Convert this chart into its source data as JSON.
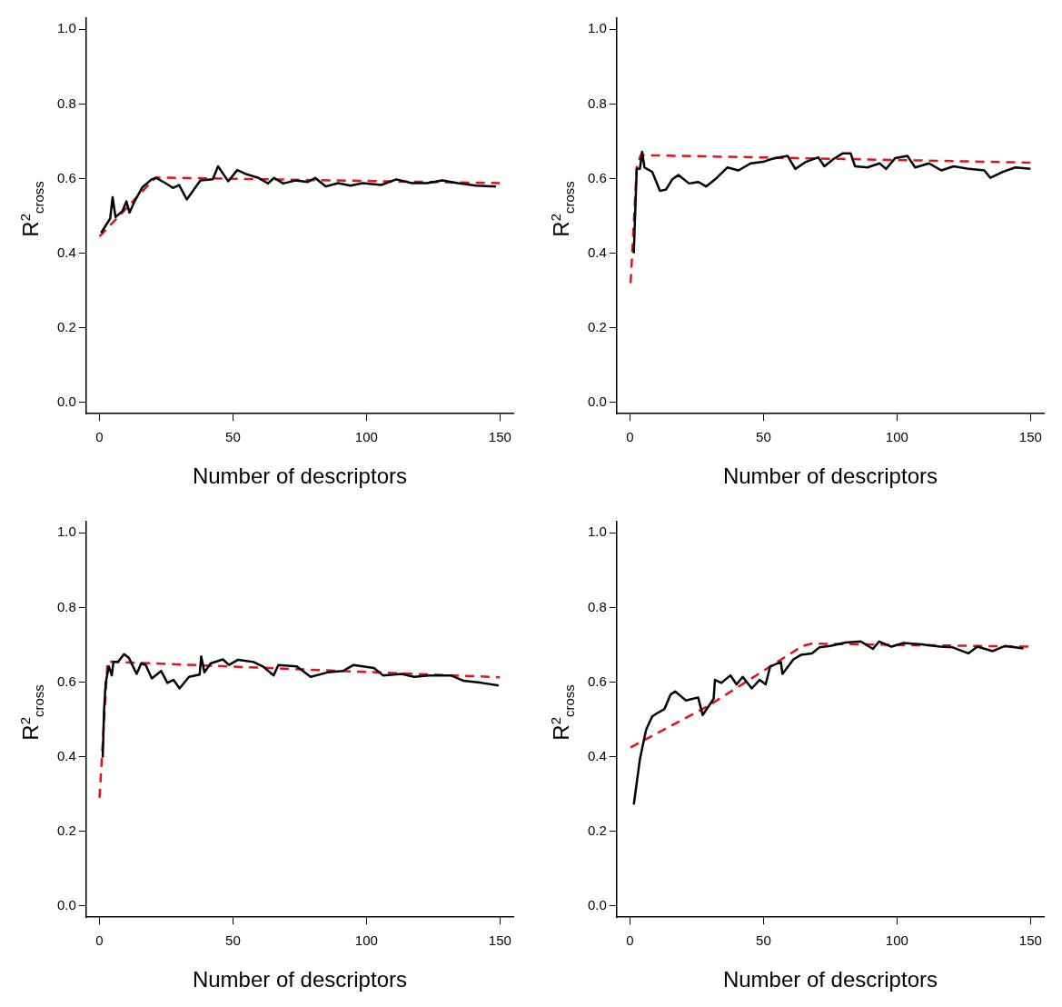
{
  "chart_data": [
    {
      "type": "line",
      "xlabel": "Number of descriptors",
      "ylabel": "R$^{2}$$_{cross}$",
      "xlim": [
        -5,
        155
      ],
      "ylim": [
        -0.03,
        1.03
      ],
      "xticks": [
        0,
        50,
        100,
        150
      ],
      "yticks": [
        {
          "value": 0,
          "label": "0.0"
        },
        {
          "value": 0.2,
          "label": "0.2"
        },
        {
          "value": 0.4,
          "label": "0.4"
        },
        {
          "value": 0.6,
          "label": "0.6"
        },
        {
          "value": 0.8,
          "label": "0.8"
        },
        {
          "value": 1,
          "label": "1.0"
        }
      ],
      "grid": false,
      "legend": false,
      "marker": "none",
      "series": [
        {
          "color": "#000000",
          "line_style": "solid",
          "x": [
            0.6,
            2.3,
            4,
            4.9,
            6,
            8.6,
            10.1,
            11.2,
            13.2,
            16.1,
            19.5,
            21.2,
            24.7,
            27.5,
            29.8,
            32.7,
            35,
            37.8,
            42.4,
            44.4,
            48.2,
            51.6,
            55,
            59.6,
            63.1,
            65.4,
            68.8,
            73.4,
            78,
            80.8,
            84.8,
            89.4,
            94,
            98.6,
            105.5,
            111.2,
            117,
            122.7,
            128.4,
            134.2,
            141,
            148.5
          ],
          "values": [
            0.455,
            0.474,
            0.493,
            0.55,
            0.497,
            0.513,
            0.539,
            0.509,
            0.54,
            0.577,
            0.598,
            0.602,
            0.588,
            0.575,
            0.583,
            0.544,
            0.567,
            0.595,
            0.598,
            0.633,
            0.593,
            0.623,
            0.612,
            0.602,
            0.587,
            0.602,
            0.587,
            0.595,
            0.591,
            0.602,
            0.579,
            0.588,
            0.581,
            0.588,
            0.583,
            0.598,
            0.588,
            0.588,
            0.595,
            0.588,
            0.581,
            0.579
          ]
        },
        {
          "color": "#e8101c",
          "line_style": "dashed",
          "x": [
            0,
            21,
            150
          ],
          "values": [
            0.445,
            0.603,
            0.588
          ]
        }
      ]
    },
    {
      "type": "line",
      "xlabel": "Number of descriptors",
      "ylabel": "R$^{2}$$_{cross}$",
      "xlim": [
        -5,
        155
      ],
      "ylim": [
        -0.03,
        1.03
      ],
      "xticks": [
        0,
        50,
        100,
        150
      ],
      "yticks": [
        {
          "value": 0,
          "label": "0.0"
        },
        {
          "value": 0.2,
          "label": "0.2"
        },
        {
          "value": 0.4,
          "label": "0.4"
        },
        {
          "value": 0.6,
          "label": "0.6"
        },
        {
          "value": 0.8,
          "label": "0.8"
        },
        {
          "value": 1,
          "label": "1.0"
        }
      ],
      "grid": false,
      "legend": false,
      "marker": "none",
      "series": [
        {
          "color": "#000000",
          "line_style": "solid",
          "x": [
            1.4,
            2.5,
            3.7,
            4.5,
            5.4,
            8.3,
            11.2,
            13.5,
            15.8,
            18.1,
            22.1,
            25.6,
            28.5,
            32.5,
            36.5,
            40.6,
            45.2,
            49.8,
            53.2,
            59,
            61.9,
            65.9,
            70.5,
            72.8,
            76.3,
            79.7,
            82.6,
            84.3,
            88.9,
            93.5,
            95.9,
            99.3,
            103.9,
            106.8,
            112,
            116.6,
            121.2,
            127,
            132.7,
            135,
            139.6,
            144.3,
            150
          ],
          "values": [
            0.4,
            0.626,
            0.626,
            0.672,
            0.63,
            0.618,
            0.567,
            0.571,
            0.598,
            0.61,
            0.587,
            0.591,
            0.579,
            0.602,
            0.63,
            0.622,
            0.641,
            0.645,
            0.653,
            0.661,
            0.626,
            0.645,
            0.657,
            0.633,
            0.653,
            0.668,
            0.668,
            0.633,
            0.63,
            0.641,
            0.626,
            0.655,
            0.661,
            0.63,
            0.641,
            0.622,
            0.633,
            0.626,
            0.622,
            0.602,
            0.618,
            0.63,
            0.626
          ]
        },
        {
          "color": "#e8101c",
          "line_style": "dashed",
          "x": [
            0.2,
            2.5,
            4,
            150
          ],
          "values": [
            0.32,
            0.63,
            0.663,
            0.643
          ]
        }
      ]
    },
    {
      "type": "line",
      "xlabel": "Number of descriptors",
      "ylabel": "R$^{2}$$_{cross}$",
      "xlim": [
        -5,
        155
      ],
      "ylim": [
        -0.03,
        1.03
      ],
      "xticks": [
        0,
        50,
        100,
        150
      ],
      "yticks": [
        {
          "value": 0,
          "label": "0.0"
        },
        {
          "value": 0.2,
          "label": "0.2"
        },
        {
          "value": 0.4,
          "label": "0.4"
        },
        {
          "value": 0.6,
          "label": "0.6"
        },
        {
          "value": 0.8,
          "label": "0.8"
        },
        {
          "value": 1,
          "label": "1.0"
        }
      ],
      "grid": false,
      "legend": false,
      "marker": "none",
      "series": [
        {
          "color": "#000000",
          "line_style": "solid",
          "x": [
            1.2,
            1.7,
            2.3,
            3.5,
            4.6,
            5.2,
            6.9,
            9.2,
            11,
            13.9,
            15.6,
            17.3,
            19.6,
            23.1,
            25.4,
            27.7,
            30,
            33.5,
            37.5,
            38.1,
            39.3,
            41.6,
            46.2,
            48.5,
            51.9,
            57.7,
            61.2,
            65.2,
            67,
            73.9,
            79.1,
            85.4,
            91.2,
            95.2,
            102.8,
            106.2,
            113.2,
            117.8,
            123.5,
            131.6,
            136.2,
            143.2,
            149.5
          ],
          "values": [
            0.398,
            0.524,
            0.598,
            0.642,
            0.618,
            0.654,
            0.654,
            0.675,
            0.665,
            0.622,
            0.65,
            0.646,
            0.61,
            0.63,
            0.598,
            0.606,
            0.583,
            0.614,
            0.62,
            0.669,
            0.626,
            0.65,
            0.661,
            0.646,
            0.66,
            0.654,
            0.642,
            0.618,
            0.646,
            0.642,
            0.614,
            0.626,
            0.63,
            0.646,
            0.638,
            0.618,
            0.622,
            0.614,
            0.618,
            0.618,
            0.604,
            0.598,
            0.591
          ]
        },
        {
          "color": "#e8101c",
          "line_style": "dashed",
          "x": [
            0,
            3,
            150
          ],
          "values": [
            0.29,
            0.655,
            0.613
          ]
        }
      ]
    },
    {
      "type": "line",
      "xlabel": "Number of descriptors",
      "ylabel": "R$^{2}$$_{cross}$",
      "xlim": [
        -5,
        155
      ],
      "ylim": [
        -0.03,
        1.03
      ],
      "xticks": [
        0,
        50,
        100,
        150
      ],
      "yticks": [
        {
          "value": 0,
          "label": "0.0"
        },
        {
          "value": 0.2,
          "label": "0.2"
        },
        {
          "value": 0.4,
          "label": "0.4"
        },
        {
          "value": 0.6,
          "label": "0.6"
        },
        {
          "value": 0.8,
          "label": "0.8"
        },
        {
          "value": 1,
          "label": "1.0"
        }
      ],
      "grid": false,
      "legend": false,
      "marker": "none",
      "series": [
        {
          "color": "#000000",
          "line_style": "solid",
          "x": [
            1.4,
            3.7,
            6,
            8.3,
            10,
            12.9,
            15.2,
            16.9,
            20.9,
            25.5,
            27.2,
            31.3,
            31.8,
            34.2,
            37.6,
            39.9,
            42.2,
            45.6,
            48.5,
            50.8,
            52.5,
            56.5,
            57.1,
            61.2,
            64,
            68.1,
            70.9,
            74.9,
            80.7,
            86.4,
            91,
            93.3,
            97.9,
            102.5,
            109.4,
            116.3,
            120.9,
            126.7,
            130.1,
            135.9,
            140.5,
            147.4
          ],
          "values": [
            0.272,
            0.394,
            0.472,
            0.508,
            0.516,
            0.528,
            0.567,
            0.575,
            0.551,
            0.559,
            0.512,
            0.555,
            0.606,
            0.598,
            0.618,
            0.594,
            0.614,
            0.583,
            0.606,
            0.594,
            0.642,
            0.654,
            0.622,
            0.661,
            0.673,
            0.677,
            0.693,
            0.697,
            0.706,
            0.709,
            0.689,
            0.709,
            0.695,
            0.705,
            0.701,
            0.695,
            0.693,
            0.677,
            0.695,
            0.683,
            0.697,
            0.69
          ]
        },
        {
          "color": "#e8101c",
          "line_style": "dashed",
          "x": [
            0.2,
            29,
            64.6,
            68,
            150
          ],
          "values": [
            0.425,
            0.535,
            0.697,
            0.703,
            0.695
          ]
        }
      ]
    }
  ]
}
